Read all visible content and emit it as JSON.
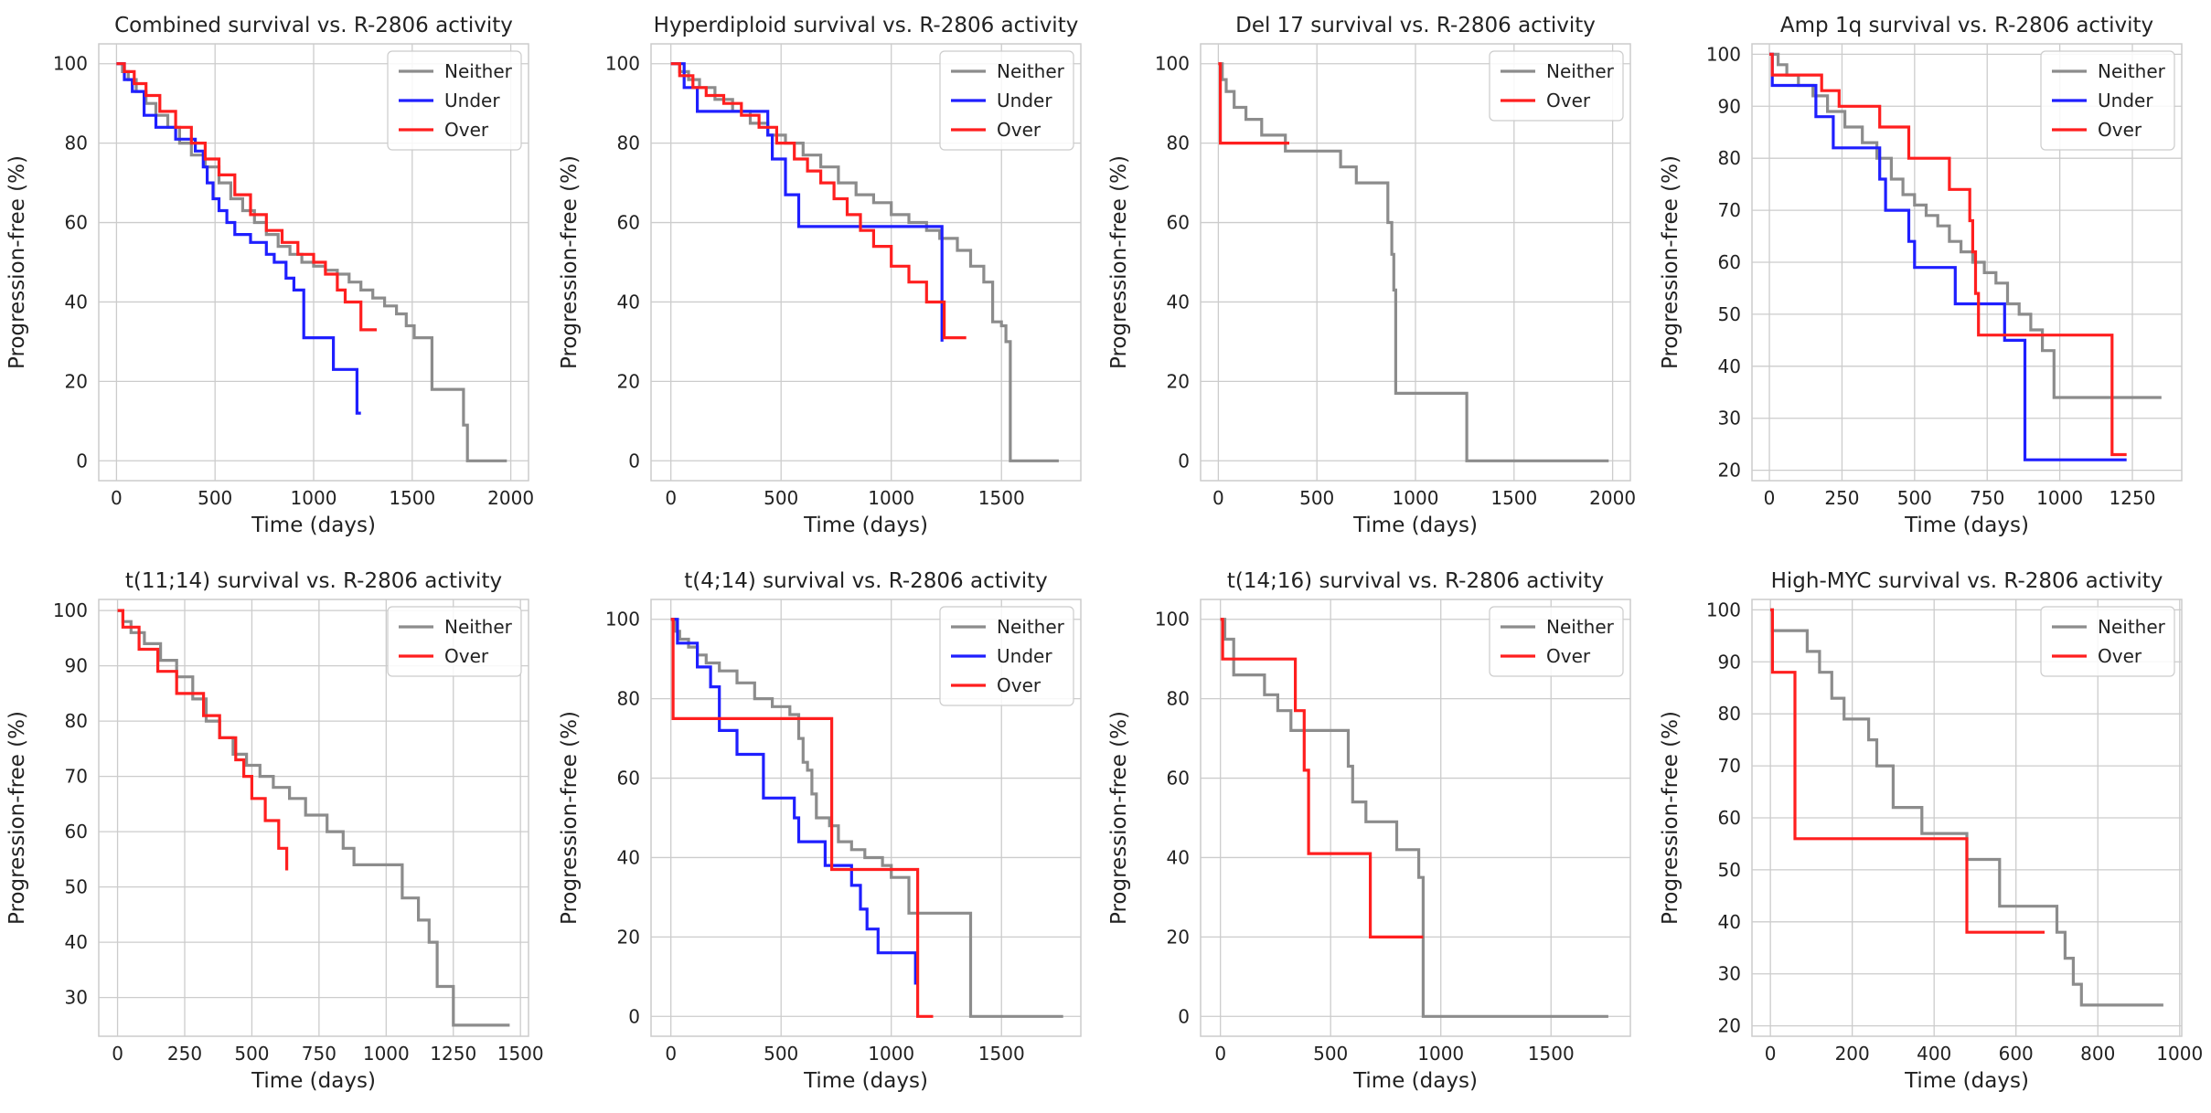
{
  "colors": {
    "Neither": "#8c8c8c",
    "Under": "#1f1fff",
    "Over": "#ff1f1f"
  },
  "chart_data": [
    {
      "type": "line",
      "title": "Combined survival vs. R-2806 activity",
      "xlabel": "Time (days)",
      "ylabel": "Progression-free (%)",
      "xlim": [
        -90,
        2090
      ],
      "ylim": [
        -5,
        105
      ],
      "xticks": [
        0,
        500,
        1000,
        1500,
        2000
      ],
      "yticks": [
        0,
        20,
        40,
        60,
        80,
        100
      ],
      "grid": true,
      "legend_position": "top-right",
      "series": [
        {
          "name": "Neither",
          "x": [
            0,
            30,
            60,
            100,
            150,
            200,
            260,
            320,
            380,
            450,
            520,
            580,
            640,
            700,
            760,
            820,
            880,
            940,
            1000,
            1060,
            1120,
            1180,
            1240,
            1300,
            1360,
            1420,
            1470,
            1510,
            1600,
            1760,
            1780,
            1980
          ],
          "y": [
            100,
            98,
            96,
            93,
            90,
            87,
            84,
            80,
            77,
            74,
            70,
            66,
            63,
            60,
            57,
            54,
            52,
            50,
            49,
            48,
            47,
            45,
            43,
            41,
            39,
            37,
            34,
            31,
            18,
            9,
            0,
            0
          ]
        },
        {
          "name": "Under",
          "x": [
            0,
            40,
            80,
            140,
            200,
            300,
            400,
            440,
            460,
            490,
            520,
            560,
            600,
            680,
            760,
            800,
            860,
            900,
            950,
            1100,
            1220,
            1240
          ],
          "y": [
            100,
            96,
            93,
            87,
            84,
            81,
            78,
            74,
            70,
            66,
            63,
            60,
            57,
            55,
            52,
            50,
            46,
            43,
            31,
            23,
            12,
            12
          ]
        },
        {
          "name": "Over",
          "x": [
            0,
            40,
            90,
            150,
            220,
            300,
            380,
            450,
            520,
            600,
            680,
            760,
            840,
            920,
            1000,
            1060,
            1120,
            1160,
            1240,
            1320
          ],
          "y": [
            100,
            98,
            95,
            92,
            88,
            84,
            80,
            76,
            72,
            67,
            62,
            58,
            55,
            52,
            50,
            47,
            43,
            40,
            33,
            33
          ]
        }
      ]
    },
    {
      "type": "line",
      "title": "Hyperdiploid survival vs. R-2806 activity",
      "xlabel": "Time (days)",
      "ylabel": "Progression-free (%)",
      "xlim": [
        -90,
        1860
      ],
      "ylim": [
        -5,
        105
      ],
      "xticks": [
        0,
        500,
        1000,
        1500
      ],
      "yticks": [
        0,
        20,
        40,
        60,
        80,
        100
      ],
      "grid": true,
      "legend_position": "top-right",
      "series": [
        {
          "name": "Neither",
          "x": [
            0,
            40,
            80,
            130,
            200,
            280,
            360,
            440,
            520,
            600,
            680,
            760,
            840,
            920,
            1000,
            1080,
            1160,
            1220,
            1300,
            1360,
            1420,
            1460,
            1500,
            1520,
            1540,
            1760
          ],
          "y": [
            100,
            98,
            96,
            94,
            91,
            88,
            85,
            82,
            80,
            77,
            74,
            70,
            67,
            65,
            62,
            60,
            58,
            56,
            53,
            49,
            45,
            35,
            34,
            30,
            0,
            0
          ]
        },
        {
          "name": "Under",
          "x": [
            0,
            60,
            120,
            440,
            460,
            520,
            580,
            1230
          ],
          "y": [
            100,
            94,
            88,
            82,
            76,
            67,
            59,
            30
          ]
        },
        {
          "name": "Over",
          "x": [
            0,
            40,
            100,
            160,
            240,
            320,
            400,
            480,
            560,
            620,
            680,
            740,
            800,
            860,
            920,
            1000,
            1080,
            1160,
            1240,
            1340
          ],
          "y": [
            100,
            97,
            94,
            92,
            90,
            87,
            84,
            80,
            76,
            73,
            70,
            66,
            62,
            58,
            54,
            49,
            45,
            40,
            31,
            31
          ]
        }
      ]
    },
    {
      "type": "line",
      "title": "Del 17 survival vs. R-2806 activity",
      "xlabel": "Time (days)",
      "ylabel": "Progression-free (%)",
      "xlim": [
        -90,
        2090
      ],
      "ylim": [
        -5,
        105
      ],
      "xticks": [
        0,
        500,
        1000,
        1500,
        2000
      ],
      "yticks": [
        0,
        20,
        40,
        60,
        80,
        100
      ],
      "grid": true,
      "legend_position": "top-right",
      "series": [
        {
          "name": "Neither",
          "x": [
            0,
            20,
            40,
            80,
            140,
            220,
            340,
            560,
            620,
            700,
            860,
            880,
            890,
            900,
            1260,
            1980
          ],
          "y": [
            100,
            96,
            93,
            89,
            86,
            82,
            78,
            78,
            74,
            70,
            60,
            52,
            43,
            17,
            0,
            0
          ]
        },
        {
          "name": "Over",
          "x": [
            0,
            10,
            360
          ],
          "y": [
            100,
            80,
            80
          ]
        }
      ]
    },
    {
      "type": "line",
      "title": "Amp 1q survival vs. R-2806 activity",
      "xlabel": "Time (days)",
      "ylabel": "Progression-free (%)",
      "xlim": [
        -60,
        1420
      ],
      "ylim": [
        18,
        102
      ],
      "xticks": [
        0,
        250,
        500,
        750,
        1000,
        1250
      ],
      "yticks": [
        20,
        30,
        40,
        50,
        60,
        70,
        80,
        90,
        100
      ],
      "grid": true,
      "legend_position": "top-right",
      "series": [
        {
          "name": "Neither",
          "x": [
            0,
            30,
            60,
            100,
            150,
            200,
            260,
            320,
            370,
            420,
            460,
            500,
            540,
            580,
            620,
            660,
            700,
            740,
            780,
            820,
            860,
            900,
            940,
            980,
            1350
          ],
          "y": [
            100,
            98,
            96,
            94,
            92,
            89,
            86,
            83,
            80,
            76,
            73,
            71,
            69,
            67,
            64,
            62,
            60,
            58,
            56,
            52,
            50,
            47,
            43,
            34,
            34
          ]
        },
        {
          "name": "Under",
          "x": [
            0,
            10,
            160,
            220,
            380,
            400,
            480,
            500,
            520,
            640,
            700,
            810,
            880,
            1230
          ],
          "y": [
            100,
            94,
            88,
            82,
            76,
            70,
            64,
            59,
            59,
            52,
            52,
            45,
            22,
            22
          ]
        },
        {
          "name": "Over",
          "x": [
            0,
            10,
            80,
            180,
            240,
            320,
            380,
            480,
            620,
            690,
            700,
            710,
            720,
            1180,
            1230
          ],
          "y": [
            100,
            96,
            96,
            93,
            90,
            90,
            86,
            80,
            74,
            68,
            62,
            54,
            46,
            23,
            23
          ]
        }
      ]
    },
    {
      "type": "line",
      "title": "t(11;14) survival vs. R-2806 activity",
      "xlabel": "Time (days)",
      "ylabel": "Progression-free (%)",
      "xlim": [
        -70,
        1530
      ],
      "ylim": [
        23,
        102
      ],
      "xticks": [
        0,
        250,
        500,
        750,
        1000,
        1250,
        1500
      ],
      "yticks": [
        30,
        40,
        50,
        60,
        70,
        80,
        90,
        100
      ],
      "grid": true,
      "legend_position": "top-right",
      "series": [
        {
          "name": "Neither",
          "x": [
            0,
            20,
            50,
            100,
            160,
            220,
            280,
            330,
            380,
            430,
            480,
            530,
            580,
            640,
            700,
            780,
            840,
            880,
            1060,
            1120,
            1160,
            1190,
            1250,
            1460
          ],
          "y": [
            100,
            98,
            96,
            94,
            91,
            88,
            84,
            80,
            77,
            74,
            72,
            70,
            68,
            66,
            63,
            60,
            57,
            54,
            48,
            44,
            40,
            32,
            25,
            25
          ]
        },
        {
          "name": "Over",
          "x": [
            0,
            20,
            80,
            150,
            220,
            320,
            380,
            440,
            470,
            500,
            550,
            600,
            630
          ],
          "y": [
            100,
            97,
            93,
            89,
            85,
            81,
            77,
            73,
            70,
            66,
            62,
            57,
            53
          ]
        }
      ]
    },
    {
      "type": "line",
      "title": "t(4;14) survival vs. R-2806 activity",
      "xlabel": "Time (days)",
      "ylabel": "Progression-free (%)",
      "xlim": [
        -90,
        1860
      ],
      "ylim": [
        -5,
        105
      ],
      "xticks": [
        0,
        500,
        1000,
        1500
      ],
      "yticks": [
        0,
        20,
        40,
        60,
        80,
        100
      ],
      "grid": true,
      "legend_position": "top-right",
      "series": [
        {
          "name": "Neither",
          "x": [
            0,
            20,
            40,
            80,
            120,
            160,
            220,
            300,
            380,
            460,
            540,
            580,
            600,
            620,
            640,
            660,
            720,
            760,
            820,
            880,
            960,
            1000,
            1080,
            1360,
            1780
          ],
          "y": [
            100,
            97,
            95,
            93,
            91,
            89,
            87,
            84,
            80,
            78,
            76,
            70,
            64,
            62,
            56,
            50,
            48,
            44,
            42,
            40,
            38,
            35,
            26,
            0,
            0
          ]
        },
        {
          "name": "Under",
          "x": [
            0,
            30,
            120,
            180,
            220,
            300,
            420,
            560,
            580,
            620,
            700,
            760,
            820,
            860,
            890,
            940,
            1110
          ],
          "y": [
            100,
            94,
            88,
            83,
            72,
            66,
            55,
            50,
            44,
            44,
            38,
            38,
            33,
            27,
            22,
            16,
            8
          ]
        },
        {
          "name": "Over",
          "x": [
            0,
            10,
            720,
            730,
            1100,
            1120,
            1190
          ],
          "y": [
            100,
            75,
            75,
            37,
            37,
            0,
            0
          ]
        }
      ]
    },
    {
      "type": "line",
      "title": "t(14;16) survival vs. R-2806 activity",
      "xlabel": "Time (days)",
      "ylabel": "Progression-free (%)",
      "xlim": [
        -90,
        1860
      ],
      "ylim": [
        -5,
        105
      ],
      "xticks": [
        0,
        500,
        1000,
        1500
      ],
      "yticks": [
        0,
        20,
        40,
        60,
        80,
        100
      ],
      "grid": true,
      "legend_position": "top-right",
      "series": [
        {
          "name": "Neither",
          "x": [
            0,
            20,
            60,
            200,
            260,
            320,
            560,
            580,
            600,
            660,
            800,
            900,
            920,
            1760
          ],
          "y": [
            100,
            95,
            86,
            81,
            77,
            72,
            72,
            63,
            54,
            49,
            42,
            35,
            0,
            0
          ]
        },
        {
          "name": "Over",
          "x": [
            0,
            10,
            260,
            340,
            380,
            400,
            680,
            920
          ],
          "y": [
            100,
            90,
            90,
            77,
            62,
            41,
            20,
            20
          ]
        }
      ]
    },
    {
      "type": "line",
      "title": "High-MYC survival vs. R-2806 activity",
      "xlabel": "Time (days)",
      "ylabel": "Progression-free (%)",
      "xlim": [
        -45,
        1005
      ],
      "ylim": [
        18,
        102
      ],
      "xticks": [
        0,
        200,
        400,
        600,
        800,
        1000
      ],
      "yticks": [
        20,
        30,
        40,
        50,
        60,
        70,
        80,
        90,
        100
      ],
      "grid": true,
      "legend_position": "top-right",
      "series": [
        {
          "name": "Neither",
          "x": [
            0,
            5,
            90,
            120,
            150,
            180,
            240,
            260,
            300,
            370,
            480,
            560,
            700,
            720,
            740,
            760,
            780,
            960
          ],
          "y": [
            100,
            96,
            92,
            88,
            83,
            79,
            75,
            70,
            62,
            57,
            52,
            43,
            38,
            33,
            28,
            24,
            24,
            24
          ]
        },
        {
          "name": "Over",
          "x": [
            0,
            5,
            60,
            480,
            670
          ],
          "y": [
            100,
            88,
            56,
            38,
            38
          ]
        }
      ]
    }
  ]
}
